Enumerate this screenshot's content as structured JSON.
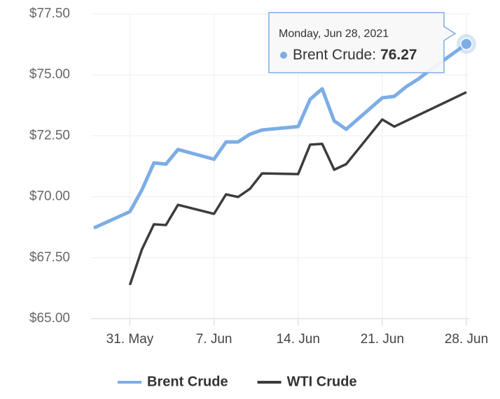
{
  "chart_data": {
    "type": "line",
    "yticks": [
      {
        "value": 65,
        "label": "$65.00"
      },
      {
        "value": 67.5,
        "label": "$67.50"
      },
      {
        "value": 70,
        "label": "$70.00"
      },
      {
        "value": 72.5,
        "label": "$72.50"
      },
      {
        "value": 75,
        "label": "$75.00"
      },
      {
        "value": 77.5,
        "label": "$77.50"
      }
    ],
    "ylim": [
      65,
      77.5
    ],
    "xlim": [
      "2021-05-28",
      "2021-06-28"
    ],
    "xticks": [
      {
        "value": "2021-05-31",
        "label": "31. May"
      },
      {
        "value": "2021-06-07",
        "label": "7. Jun"
      },
      {
        "value": "2021-06-14",
        "label": "14. Jun"
      },
      {
        "value": "2021-06-21",
        "label": "21. Jun"
      },
      {
        "value": "2021-06-28",
        "label": "28. Jun"
      }
    ],
    "grid": true,
    "legend": "bottom",
    "series": [
      {
        "name": "Brent Crude",
        "color": "#7cade6",
        "x": [
          "2021-05-28",
          "2021-05-31",
          "2021-06-01",
          "2021-06-02",
          "2021-06-03",
          "2021-06-04",
          "2021-06-07",
          "2021-06-08",
          "2021-06-09",
          "2021-06-10",
          "2021-06-11",
          "2021-06-14",
          "2021-06-15",
          "2021-06-16",
          "2021-06-17",
          "2021-06-18",
          "2021-06-21",
          "2021-06-22",
          "2021-06-23",
          "2021-06-24",
          "2021-06-25",
          "2021-06-28"
        ],
        "values": [
          68.72,
          69.39,
          70.28,
          71.39,
          71.34,
          71.94,
          71.54,
          72.25,
          72.25,
          72.57,
          72.74,
          72.88,
          74.0,
          74.43,
          73.11,
          72.77,
          74.06,
          74.12,
          74.52,
          74.83,
          75.21,
          76.27
        ]
      },
      {
        "name": "WTI Crude",
        "color": "#3c3c3c",
        "x": [
          "2021-05-31",
          "2021-06-01",
          "2021-06-02",
          "2021-06-03",
          "2021-06-04",
          "2021-06-07",
          "2021-06-08",
          "2021-06-09",
          "2021-06-10",
          "2021-06-11",
          "2021-06-14",
          "2021-06-15",
          "2021-06-16",
          "2021-06-17",
          "2021-06-18",
          "2021-06-21",
          "2021-06-22",
          "2021-06-28"
        ],
        "values": [
          66.38,
          67.84,
          68.87,
          68.84,
          69.67,
          69.3,
          70.1,
          69.99,
          70.33,
          70.96,
          70.93,
          72.14,
          72.17,
          71.11,
          71.34,
          73.17,
          72.88,
          74.29
        ]
      }
    ],
    "tooltip": {
      "date": "Monday, Jun 28, 2021",
      "label": "Brent Crude:"
    }
  }
}
